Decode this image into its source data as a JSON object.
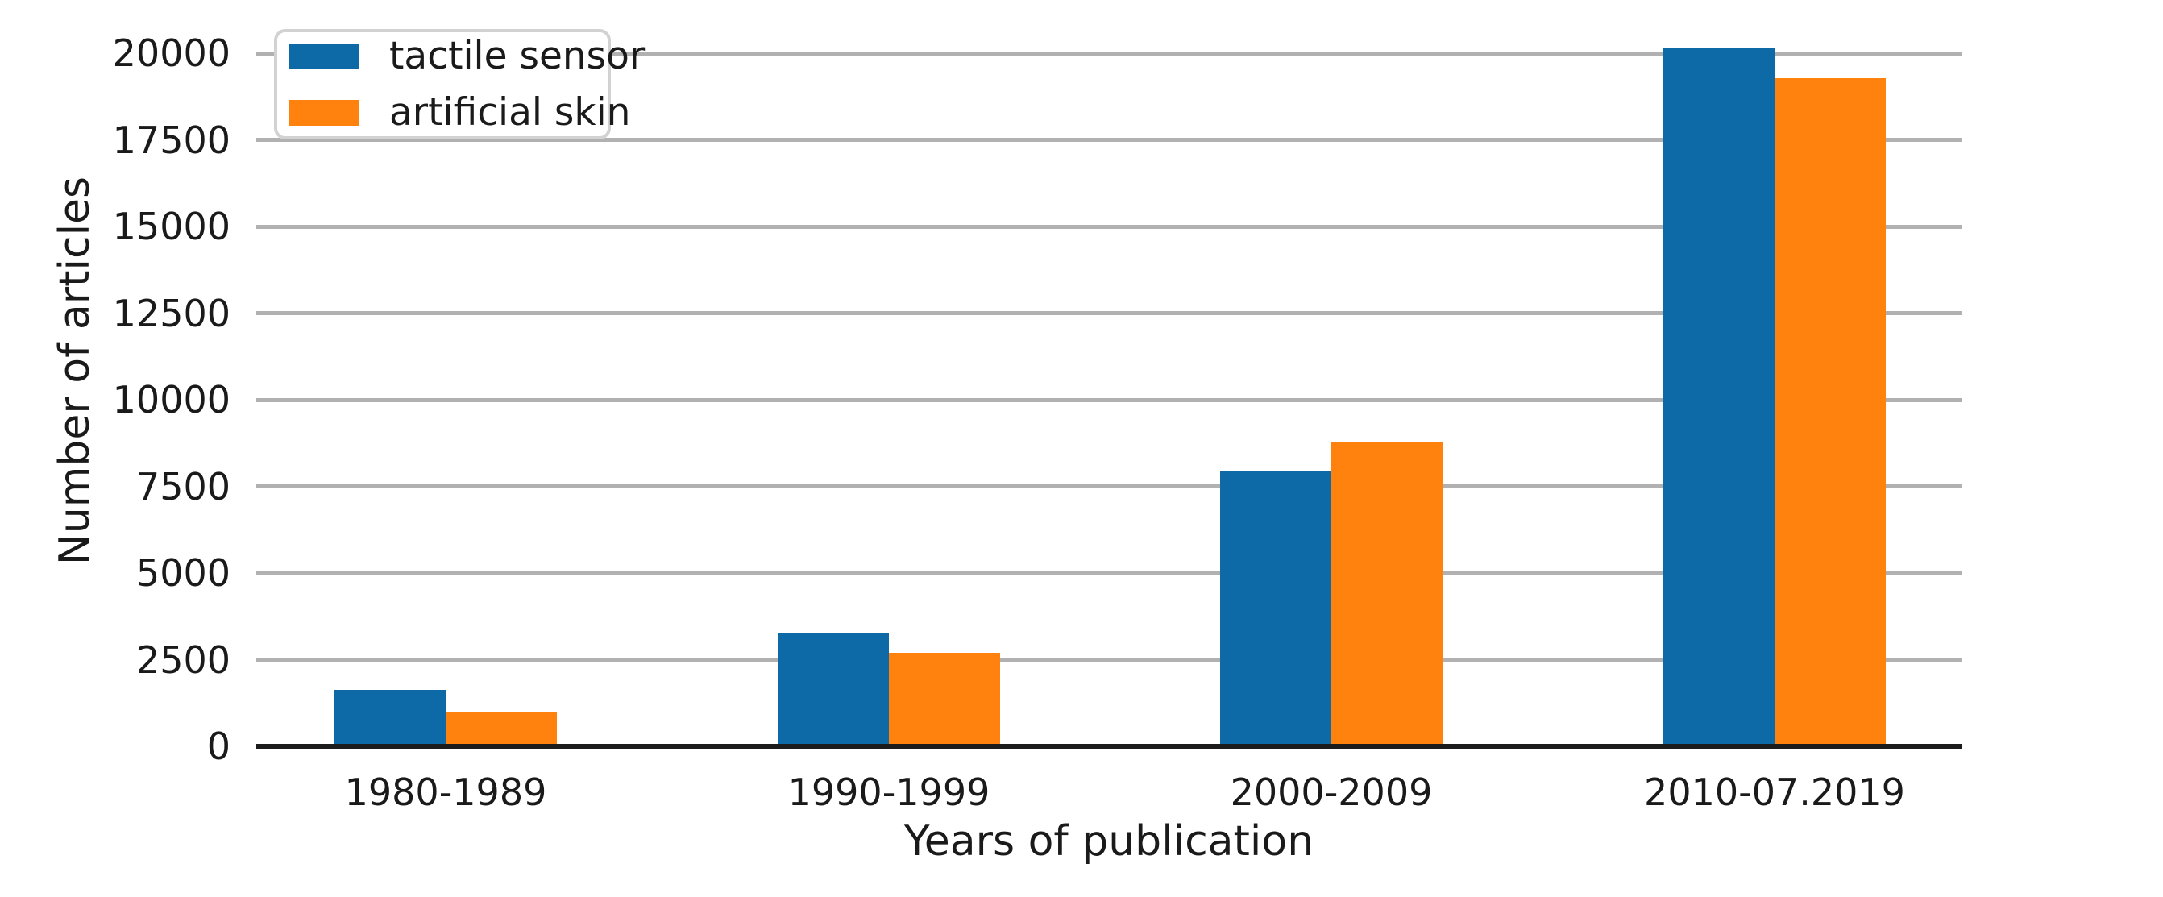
{
  "chart_data": {
    "type": "bar",
    "title": "",
    "xlabel": "Years of publication",
    "ylabel": "Number of articles",
    "categories": [
      "1980-1989",
      "1990-1999",
      "2000-2009",
      "2010-07.2019"
    ],
    "series": [
      {
        "name": "tactile sensor",
        "color": "#0d6aa7",
        "values": [
          1620,
          3280,
          7930,
          20160
        ]
      },
      {
        "name": "artificial skin",
        "color": "#ff810e",
        "values": [
          970,
          2700,
          8790,
          19280
        ]
      }
    ],
    "yticks": [
      0,
      2500,
      5000,
      7500,
      10000,
      12500,
      15000,
      17500,
      20000
    ],
    "ylim": [
      0,
      21500
    ],
    "grid": "horizontal",
    "gridline_color": "#b1b1b1",
    "axis_line_color": "#1c1c1c",
    "legend_position": "upper-left"
  }
}
